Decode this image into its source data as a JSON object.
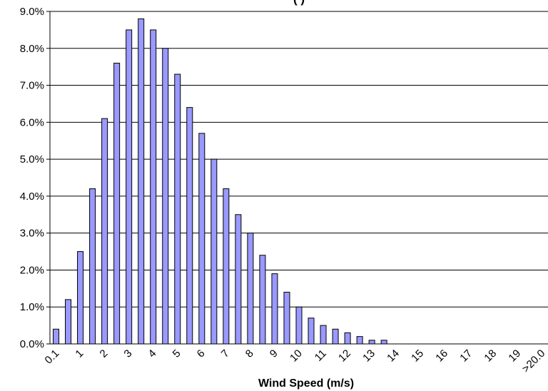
{
  "chart_data": {
    "type": "bar",
    "title": "(                    )",
    "xlabel": "Wind Speed (m/s)",
    "ylabel": "",
    "ylim": [
      0,
      9
    ],
    "ytick_step": 1,
    "ytick_labels": [
      "0.0%",
      "1.0%",
      "2.0%",
      "3.0%",
      "4.0%",
      "5.0%",
      "6.0%",
      "7.0%",
      "8.0%",
      "9.0%"
    ],
    "grid": true,
    "legend": "none",
    "bar_color": "#9999FF",
    "bar_edge_color": "#000000",
    "x_tick_labels": [
      "0.1",
      "1",
      "2",
      "3",
      "4",
      "5",
      "6",
      "7",
      "8",
      "9",
      "10",
      "11",
      "12",
      "13",
      "14",
      "15",
      "16",
      "17",
      "18",
      "19",
      ">20.0"
    ],
    "values": [
      0.4,
      1.2,
      2.5,
      4.2,
      6.1,
      7.6,
      8.5,
      8.8,
      8.5,
      8.0,
      7.3,
      6.4,
      5.7,
      5.0,
      4.2,
      3.5,
      3.0,
      2.4,
      1.9,
      1.4,
      1.0,
      0.7,
      0.5,
      0.4,
      0.3,
      0.2,
      0.1,
      0.1,
      0,
      0,
      0,
      0,
      0,
      0,
      0,
      0,
      0,
      0,
      0,
      0,
      0
    ]
  }
}
